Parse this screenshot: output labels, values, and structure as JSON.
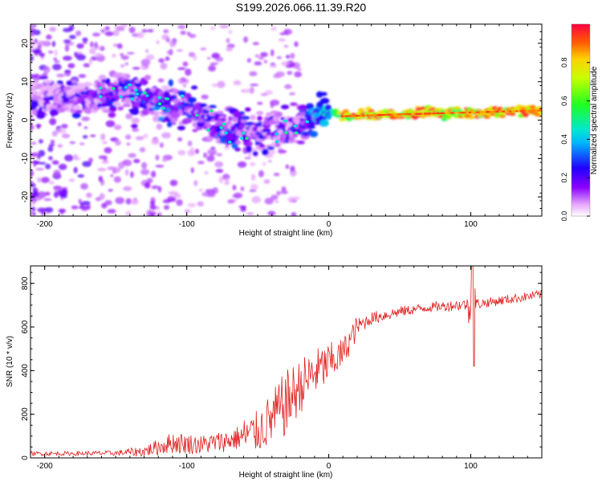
{
  "title": "S199.2026.066.11.39.R20",
  "chart_data": [
    {
      "type": "heatmap",
      "title": "S199.2026.066.11.39.R20",
      "xlabel": "Height of straight line (km)",
      "ylabel": "Frequency (Hz)",
      "xlim": [
        -210,
        150
      ],
      "ylim": [
        -25,
        25
      ],
      "x_ticks": [
        -200,
        -100,
        0,
        100
      ],
      "y_ticks": [
        -20,
        -10,
        0,
        10,
        20
      ],
      "colorbar": {
        "label": "Normalized spectral amplitude",
        "range": [
          0,
          1
        ],
        "ticks": [
          "0.0",
          "0.2",
          "0.4",
          "0.6",
          "0.8"
        ],
        "tick_values": [
          0.0,
          0.2,
          0.4,
          0.6,
          0.8
        ]
      },
      "ridge": {
        "x": [
          -210,
          -170,
          -140,
          -120,
          -100,
          -80,
          -60,
          -40,
          -30,
          -20,
          -10,
          0,
          10,
          50,
          100,
          150
        ],
        "freq": [
          6,
          6,
          7,
          5,
          3,
          -1,
          -3,
          -3,
          -2,
          -1,
          0.5,
          2,
          1,
          1.5,
          2,
          2.5
        ],
        "amplitude": [
          0.2,
          0.25,
          0.3,
          0.32,
          0.3,
          0.28,
          0.3,
          0.25,
          0.25,
          0.3,
          0.4,
          0.45,
          0.9,
          0.95,
          0.95,
          0.95
        ]
      }
    },
    {
      "type": "line",
      "xlabel": "Height of straight line (km)",
      "ylabel": "SNR (10 * v/v)",
      "xlim": [
        -210,
        150
      ],
      "ylim": [
        0,
        880
      ],
      "x_ticks": [
        -200,
        -100,
        0,
        100
      ],
      "y_ticks": [
        0,
        200,
        400,
        600,
        800
      ],
      "color": "#e02020",
      "series": [
        {
          "name": "SNR",
          "x": [
            -210,
            -180,
            -150,
            -130,
            -110,
            -90,
            -70,
            -50,
            -40,
            -30,
            -20,
            -10,
            0,
            10,
            20,
            30,
            50,
            70,
            90,
            100,
            110,
            130,
            150
          ],
          "mean": [
            20,
            20,
            22,
            30,
            70,
            60,
            80,
            120,
            180,
            250,
            330,
            390,
            430,
            480,
            600,
            640,
            670,
            690,
            700,
            705,
            710,
            730,
            750
          ],
          "noise": [
            10,
            10,
            12,
            25,
            50,
            45,
            50,
            70,
            90,
            110,
            90,
            80,
            70,
            50,
            40,
            30,
            25,
            22,
            25,
            30,
            22,
            22,
            20
          ]
        }
      ],
      "spike": {
        "x": 101,
        "max": 880,
        "min": 420
      }
    }
  ]
}
